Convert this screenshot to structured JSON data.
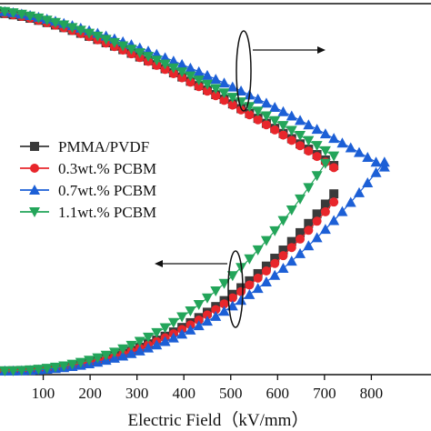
{
  "chart_data": {
    "type": "scatter",
    "xlabel": "Electric Field（kV/mm）",
    "x_ticks": [
      100,
      200,
      300,
      400,
      500,
      600,
      700,
      800
    ],
    "xlim": [
      0,
      880
    ],
    "grid": false,
    "legend_position": "left-middle",
    "annotations": {
      "right_arrow": "points to right axis (upper curve group)",
      "left_arrow": "points to left axis (lower curve group)"
    },
    "series": [
      {
        "name": "PMMA/PVDF",
        "color": "#3a3a3a",
        "marker": "square",
        "upper": {
          "x_start": 0,
          "x_end": 725,
          "y_start": 0.985,
          "y_end": 0.565
        },
        "lower": {
          "x_start": 0,
          "x_end": 725,
          "y_start": 0.01,
          "y_end": 0.5
        }
      },
      {
        "name": "0.3wt.% PCBM",
        "color": "#e8262b",
        "marker": "circle",
        "upper": {
          "x_start": 0,
          "x_end": 730,
          "y_start": 0.985,
          "y_end": 0.555
        },
        "lower": {
          "x_start": 0,
          "x_end": 730,
          "y_start": 0.01,
          "y_end": 0.485
        }
      },
      {
        "name": "0.7wt.% PCBM",
        "color": "#1c5fd6",
        "marker": "triangle-up",
        "upper": {
          "x_start": 0,
          "x_end": 835,
          "y_start": 0.99,
          "y_end": 0.56
        },
        "lower": {
          "x_start": 0,
          "x_end": 835,
          "y_start": 0.01,
          "y_end": 0.59
        }
      },
      {
        "name": "1.1wt.% PCBM",
        "color": "#23a55a",
        "marker": "triangle-down",
        "upper": {
          "x_start": 0,
          "x_end": 720,
          "y_start": 0.99,
          "y_end": 0.595
        },
        "lower": {
          "x_start": 0,
          "x_end": 710,
          "y_start": 0.01,
          "y_end": 0.59
        }
      }
    ]
  }
}
